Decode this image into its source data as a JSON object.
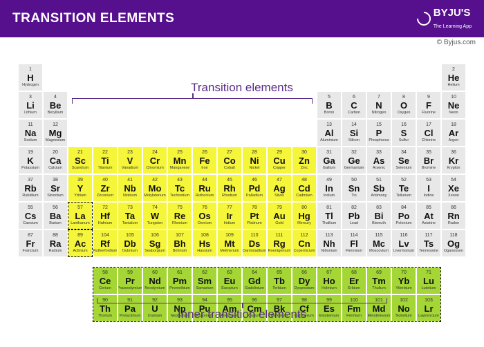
{
  "header": {
    "title": "TRANSITION ELEMENTS",
    "brand": "BYJU'S",
    "tagline": "The Learning App"
  },
  "attribution": "© Byjus.com",
  "labels": {
    "main": "Transition elements",
    "inner": "Inner transition elements"
  },
  "colors": {
    "default": "#e8e8e8",
    "transition": "#f5f53a",
    "inner": "#a4d635",
    "header": "#56108e",
    "label": "#5a2c8a"
  },
  "elements": [
    {
      "z": 1,
      "sym": "H",
      "name": "Hydrogen",
      "row": 1,
      "col": 1,
      "cat": "d"
    },
    {
      "z": 2,
      "sym": "He",
      "name": "Helium",
      "row": 1,
      "col": 18,
      "cat": "d"
    },
    {
      "z": 3,
      "sym": "Li",
      "name": "Lithium",
      "row": 2,
      "col": 1,
      "cat": "d"
    },
    {
      "z": 4,
      "sym": "Be",
      "name": "Beryllium",
      "row": 2,
      "col": 2,
      "cat": "d"
    },
    {
      "z": 5,
      "sym": "B",
      "name": "Boron",
      "row": 2,
      "col": 13,
      "cat": "d"
    },
    {
      "z": 6,
      "sym": "C",
      "name": "Carbon",
      "row": 2,
      "col": 14,
      "cat": "d"
    },
    {
      "z": 7,
      "sym": "N",
      "name": "Nitrogen",
      "row": 2,
      "col": 15,
      "cat": "d"
    },
    {
      "z": 8,
      "sym": "O",
      "name": "Oxygen",
      "row": 2,
      "col": 16,
      "cat": "d"
    },
    {
      "z": 9,
      "sym": "F",
      "name": "Fluorine",
      "row": 2,
      "col": 17,
      "cat": "d"
    },
    {
      "z": 10,
      "sym": "Ne",
      "name": "Neon",
      "row": 2,
      "col": 18,
      "cat": "d"
    },
    {
      "z": 11,
      "sym": "Na",
      "name": "Sodium",
      "row": 3,
      "col": 1,
      "cat": "d"
    },
    {
      "z": 12,
      "sym": "Mg",
      "name": "Magnesium",
      "row": 3,
      "col": 2,
      "cat": "d"
    },
    {
      "z": 13,
      "sym": "Al",
      "name": "Aluminium",
      "row": 3,
      "col": 13,
      "cat": "d"
    },
    {
      "z": 14,
      "sym": "Si",
      "name": "Silicon",
      "row": 3,
      "col": 14,
      "cat": "d"
    },
    {
      "z": 15,
      "sym": "P",
      "name": "Phosphorus",
      "row": 3,
      "col": 15,
      "cat": "d"
    },
    {
      "z": 16,
      "sym": "S",
      "name": "Sulfur",
      "row": 3,
      "col": 16,
      "cat": "d"
    },
    {
      "z": 17,
      "sym": "Cl",
      "name": "Chlorine",
      "row": 3,
      "col": 17,
      "cat": "d"
    },
    {
      "z": 18,
      "sym": "Ar",
      "name": "Argon",
      "row": 3,
      "col": 18,
      "cat": "d"
    },
    {
      "z": 19,
      "sym": "K",
      "name": "Potassium",
      "row": 4,
      "col": 1,
      "cat": "d"
    },
    {
      "z": 20,
      "sym": "Ca",
      "name": "Calcium",
      "row": 4,
      "col": 2,
      "cat": "d"
    },
    {
      "z": 21,
      "sym": "Sc",
      "name": "Scandium",
      "row": 4,
      "col": 3,
      "cat": "t"
    },
    {
      "z": 22,
      "sym": "Ti",
      "name": "Titanium",
      "row": 4,
      "col": 4,
      "cat": "t"
    },
    {
      "z": 23,
      "sym": "V",
      "name": "Vanadium",
      "row": 4,
      "col": 5,
      "cat": "t"
    },
    {
      "z": 24,
      "sym": "Cr",
      "name": "Chromium",
      "row": 4,
      "col": 6,
      "cat": "t"
    },
    {
      "z": 25,
      "sym": "Mn",
      "name": "Manganese",
      "row": 4,
      "col": 7,
      "cat": "t"
    },
    {
      "z": 26,
      "sym": "Fe",
      "name": "Iron",
      "row": 4,
      "col": 8,
      "cat": "t"
    },
    {
      "z": 27,
      "sym": "Co",
      "name": "Cobalt",
      "row": 4,
      "col": 9,
      "cat": "t"
    },
    {
      "z": 28,
      "sym": "Ni",
      "name": "Nickel",
      "row": 4,
      "col": 10,
      "cat": "t"
    },
    {
      "z": 29,
      "sym": "Cu",
      "name": "Copper",
      "row": 4,
      "col": 11,
      "cat": "t"
    },
    {
      "z": 30,
      "sym": "Zn",
      "name": "Zinc",
      "row": 4,
      "col": 12,
      "cat": "t"
    },
    {
      "z": 31,
      "sym": "Ga",
      "name": "Gallium",
      "row": 4,
      "col": 13,
      "cat": "d"
    },
    {
      "z": 32,
      "sym": "Ge",
      "name": "Germanium",
      "row": 4,
      "col": 14,
      "cat": "d"
    },
    {
      "z": 33,
      "sym": "As",
      "name": "Arsenic",
      "row": 4,
      "col": 15,
      "cat": "d"
    },
    {
      "z": 34,
      "sym": "Se",
      "name": "Selenium",
      "row": 4,
      "col": 16,
      "cat": "d"
    },
    {
      "z": 35,
      "sym": "Br",
      "name": "Bromine",
      "row": 4,
      "col": 17,
      "cat": "d"
    },
    {
      "z": 36,
      "sym": "Kr",
      "name": "Krypton",
      "row": 4,
      "col": 18,
      "cat": "d"
    },
    {
      "z": 37,
      "sym": "Rb",
      "name": "Rubidium",
      "row": 5,
      "col": 1,
      "cat": "d"
    },
    {
      "z": 38,
      "sym": "Sr",
      "name": "Strontium",
      "row": 5,
      "col": 2,
      "cat": "d"
    },
    {
      "z": 39,
      "sym": "Y",
      "name": "Yttrium",
      "row": 5,
      "col": 3,
      "cat": "t"
    },
    {
      "z": 40,
      "sym": "Zr",
      "name": "Zirconium",
      "row": 5,
      "col": 4,
      "cat": "t"
    },
    {
      "z": 41,
      "sym": "Nb",
      "name": "Niobium",
      "row": 5,
      "col": 5,
      "cat": "t"
    },
    {
      "z": 42,
      "sym": "Mo",
      "name": "Molybdenum",
      "row": 5,
      "col": 6,
      "cat": "t"
    },
    {
      "z": 43,
      "sym": "Tc",
      "name": "Technetium",
      "row": 5,
      "col": 7,
      "cat": "t"
    },
    {
      "z": 44,
      "sym": "Ru",
      "name": "Ruthenium",
      "row": 5,
      "col": 8,
      "cat": "t"
    },
    {
      "z": 45,
      "sym": "Rh",
      "name": "Rhodium",
      "row": 5,
      "col": 9,
      "cat": "t"
    },
    {
      "z": 46,
      "sym": "Pd",
      "name": "Palladium",
      "row": 5,
      "col": 10,
      "cat": "t"
    },
    {
      "z": 47,
      "sym": "Ag",
      "name": "Silver",
      "row": 5,
      "col": 11,
      "cat": "t"
    },
    {
      "z": 48,
      "sym": "Cd",
      "name": "Cadmium",
      "row": 5,
      "col": 12,
      "cat": "t"
    },
    {
      "z": 49,
      "sym": "In",
      "name": "Indium",
      "row": 5,
      "col": 13,
      "cat": "d"
    },
    {
      "z": 50,
      "sym": "Sn",
      "name": "Tin",
      "row": 5,
      "col": 14,
      "cat": "d"
    },
    {
      "z": 51,
      "sym": "Sb",
      "name": "Antimony",
      "row": 5,
      "col": 15,
      "cat": "d"
    },
    {
      "z": 52,
      "sym": "Te",
      "name": "Tellurium",
      "row": 5,
      "col": 16,
      "cat": "d"
    },
    {
      "z": 53,
      "sym": "I",
      "name": "Iodine",
      "row": 5,
      "col": 17,
      "cat": "d"
    },
    {
      "z": 54,
      "sym": "Xe",
      "name": "Xenon",
      "row": 5,
      "col": 18,
      "cat": "d"
    },
    {
      "z": 55,
      "sym": "Cs",
      "name": "Caesium",
      "row": 6,
      "col": 1,
      "cat": "d"
    },
    {
      "z": 56,
      "sym": "Ba",
      "name": "Barium",
      "row": 6,
      "col": 2,
      "cat": "d"
    },
    {
      "z": 57,
      "sym": "La",
      "name": "Lanthanum",
      "row": 6,
      "col": 3,
      "cat": "t"
    },
    {
      "z": 72,
      "sym": "Hf",
      "name": "Hafnium",
      "row": 6,
      "col": 4,
      "cat": "t"
    },
    {
      "z": 73,
      "sym": "Ta",
      "name": "Tantalum",
      "row": 6,
      "col": 5,
      "cat": "t"
    },
    {
      "z": 74,
      "sym": "W",
      "name": "Tungsten",
      "row": 6,
      "col": 6,
      "cat": "t"
    },
    {
      "z": 75,
      "sym": "Re",
      "name": "Rhenium",
      "row": 6,
      "col": 7,
      "cat": "t"
    },
    {
      "z": 76,
      "sym": "Os",
      "name": "Osmium",
      "row": 6,
      "col": 8,
      "cat": "t"
    },
    {
      "z": 77,
      "sym": "Ir",
      "name": "Iridium",
      "row": 6,
      "col": 9,
      "cat": "t"
    },
    {
      "z": 78,
      "sym": "Pt",
      "name": "Platinum",
      "row": 6,
      "col": 10,
      "cat": "t"
    },
    {
      "z": 79,
      "sym": "Au",
      "name": "Gold",
      "row": 6,
      "col": 11,
      "cat": "t"
    },
    {
      "z": 80,
      "sym": "Hg",
      "name": "Mercury",
      "row": 6,
      "col": 12,
      "cat": "t"
    },
    {
      "z": 81,
      "sym": "Tl",
      "name": "Thallium",
      "row": 6,
      "col": 13,
      "cat": "d"
    },
    {
      "z": 82,
      "sym": "Pb",
      "name": "Lead",
      "row": 6,
      "col": 14,
      "cat": "d"
    },
    {
      "z": 83,
      "sym": "Bi",
      "name": "Bismuth",
      "row": 6,
      "col": 15,
      "cat": "d"
    },
    {
      "z": 84,
      "sym": "Po",
      "name": "Polonium",
      "row": 6,
      "col": 16,
      "cat": "d"
    },
    {
      "z": 85,
      "sym": "At",
      "name": "Astatine",
      "row": 6,
      "col": 17,
      "cat": "d"
    },
    {
      "z": 86,
      "sym": "Rn",
      "name": "Radon",
      "row": 6,
      "col": 18,
      "cat": "d"
    },
    {
      "z": 87,
      "sym": "Fr",
      "name": "Francium",
      "row": 7,
      "col": 1,
      "cat": "d"
    },
    {
      "z": 88,
      "sym": "Ra",
      "name": "Radium",
      "row": 7,
      "col": 2,
      "cat": "d"
    },
    {
      "z": 89,
      "sym": "Ac",
      "name": "Actinium",
      "row": 7,
      "col": 3,
      "cat": "t"
    },
    {
      "z": 104,
      "sym": "Rf",
      "name": "Rutherfordium",
      "row": 7,
      "col": 4,
      "cat": "t"
    },
    {
      "z": 105,
      "sym": "Db",
      "name": "Dubnium",
      "row": 7,
      "col": 5,
      "cat": "t"
    },
    {
      "z": 106,
      "sym": "Sg",
      "name": "Seaborgium",
      "row": 7,
      "col": 6,
      "cat": "t"
    },
    {
      "z": 107,
      "sym": "Bh",
      "name": "Bohrium",
      "row": 7,
      "col": 7,
      "cat": "t"
    },
    {
      "z": 108,
      "sym": "Hs",
      "name": "Hassium",
      "row": 7,
      "col": 8,
      "cat": "t"
    },
    {
      "z": 109,
      "sym": "Mt",
      "name": "Meitnerium",
      "row": 7,
      "col": 9,
      "cat": "t"
    },
    {
      "z": 110,
      "sym": "Ds",
      "name": "Darmstadtium",
      "row": 7,
      "col": 10,
      "cat": "t"
    },
    {
      "z": 111,
      "sym": "Rg",
      "name": "Roentgenium",
      "row": 7,
      "col": 11,
      "cat": "t"
    },
    {
      "z": 112,
      "sym": "Cn",
      "name": "Copernicium",
      "row": 7,
      "col": 12,
      "cat": "t"
    },
    {
      "z": 113,
      "sym": "Nh",
      "name": "Nihonium",
      "row": 7,
      "col": 13,
      "cat": "d"
    },
    {
      "z": 114,
      "sym": "Fl",
      "name": "Flerovium",
      "row": 7,
      "col": 14,
      "cat": "d"
    },
    {
      "z": 115,
      "sym": "Mc",
      "name": "Moscovium",
      "row": 7,
      "col": 15,
      "cat": "d"
    },
    {
      "z": 116,
      "sym": "Lv",
      "name": "Livermorium",
      "row": 7,
      "col": 16,
      "cat": "d"
    },
    {
      "z": 117,
      "sym": "Ts",
      "name": "Tennessine",
      "row": 7,
      "col": 17,
      "cat": "d"
    },
    {
      "z": 118,
      "sym": "Og",
      "name": "Oganesson",
      "row": 7,
      "col": 18,
      "cat": "d"
    },
    {
      "z": 58,
      "sym": "Ce",
      "name": "Cerium",
      "row": 9,
      "col": 4,
      "cat": "i"
    },
    {
      "z": 59,
      "sym": "Pr",
      "name": "Praseodymium",
      "row": 9,
      "col": 5,
      "cat": "i"
    },
    {
      "z": 60,
      "sym": "Nd",
      "name": "Neodymium",
      "row": 9,
      "col": 6,
      "cat": "i"
    },
    {
      "z": 61,
      "sym": "Pm",
      "name": "Promethium",
      "row": 9,
      "col": 7,
      "cat": "i"
    },
    {
      "z": 62,
      "sym": "Sm",
      "name": "Samarium",
      "row": 9,
      "col": 8,
      "cat": "i"
    },
    {
      "z": 63,
      "sym": "Eu",
      "name": "Europium",
      "row": 9,
      "col": 9,
      "cat": "i"
    },
    {
      "z": 64,
      "sym": "Gd",
      "name": "Gadolinium",
      "row": 9,
      "col": 10,
      "cat": "i"
    },
    {
      "z": 65,
      "sym": "Tb",
      "name": "Terbium",
      "row": 9,
      "col": 11,
      "cat": "i"
    },
    {
      "z": 66,
      "sym": "Dy",
      "name": "Dysprosium",
      "row": 9,
      "col": 12,
      "cat": "i"
    },
    {
      "z": 67,
      "sym": "Ho",
      "name": "Holmium",
      "row": 9,
      "col": 13,
      "cat": "i"
    },
    {
      "z": 68,
      "sym": "Er",
      "name": "Erbium",
      "row": 9,
      "col": 14,
      "cat": "i"
    },
    {
      "z": 69,
      "sym": "Tm",
      "name": "Thulium",
      "row": 9,
      "col": 15,
      "cat": "i"
    },
    {
      "z": 70,
      "sym": "Yb",
      "name": "Ytterbium",
      "row": 9,
      "col": 16,
      "cat": "i"
    },
    {
      "z": 71,
      "sym": "Lu",
      "name": "Lutetium",
      "row": 9,
      "col": 17,
      "cat": "i"
    },
    {
      "z": 90,
      "sym": "Th",
      "name": "Thorium",
      "row": 10,
      "col": 4,
      "cat": "i"
    },
    {
      "z": 91,
      "sym": "Pa",
      "name": "Protactinium",
      "row": 10,
      "col": 5,
      "cat": "i"
    },
    {
      "z": 92,
      "sym": "U",
      "name": "Uranium",
      "row": 10,
      "col": 6,
      "cat": "i"
    },
    {
      "z": 93,
      "sym": "Np",
      "name": "Neptunium",
      "row": 10,
      "col": 7,
      "cat": "i"
    },
    {
      "z": 94,
      "sym": "Pu",
      "name": "Plutonium",
      "row": 10,
      "col": 8,
      "cat": "i"
    },
    {
      "z": 95,
      "sym": "Am",
      "name": "Americium",
      "row": 10,
      "col": 9,
      "cat": "i"
    },
    {
      "z": 96,
      "sym": "Cm",
      "name": "Curium",
      "row": 10,
      "col": 10,
      "cat": "i"
    },
    {
      "z": 97,
      "sym": "Bk",
      "name": "Berkelium",
      "row": 10,
      "col": 11,
      "cat": "i"
    },
    {
      "z": 98,
      "sym": "Cf",
      "name": "Californium",
      "row": 10,
      "col": 12,
      "cat": "i"
    },
    {
      "z": 99,
      "sym": "Es",
      "name": "Einsteinium",
      "row": 10,
      "col": 13,
      "cat": "i"
    },
    {
      "z": 100,
      "sym": "Fm",
      "name": "Fermium",
      "row": 10,
      "col": 14,
      "cat": "i"
    },
    {
      "z": 101,
      "sym": "Md",
      "name": "Mendelevium",
      "row": 10,
      "col": 15,
      "cat": "i"
    },
    {
      "z": 102,
      "sym": "No",
      "name": "Nobelium",
      "row": 10,
      "col": 16,
      "cat": "i"
    },
    {
      "z": 103,
      "sym": "Lr",
      "name": "Lawrencium",
      "row": 10,
      "col": 17,
      "cat": "i"
    }
  ],
  "gap_row": {
    "row": 8,
    "height": 12
  }
}
